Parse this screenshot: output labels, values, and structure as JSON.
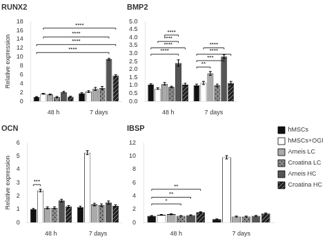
{
  "chart_data": [
    {
      "type": "bar",
      "title": "RUNX2",
      "ylabel": "Relative expression",
      "categories": [
        "48 h",
        "7 days"
      ],
      "series": [
        {
          "name": "hMSCs",
          "color": "#111111",
          "values": [
            1.0,
            1.8
          ],
          "errors": [
            0.08,
            0.15
          ]
        },
        {
          "name": "hMSCs+OGM",
          "color": "#ffffff",
          "values": [
            1.7,
            2.2
          ],
          "errors": [
            0.1,
            0.2
          ]
        },
        {
          "name": "Arneis LC",
          "color": "#aaaaaa",
          "values": [
            1.55,
            2.8
          ],
          "errors": [
            0.1,
            0.35
          ]
        },
        {
          "name": "Croatina LC",
          "color": "#888888",
          "values": [
            1.0,
            3.0
          ],
          "errors": [
            0.1,
            0.35
          ]
        },
        {
          "name": "Arneis HC",
          "color": "#555555",
          "values": [
            2.1,
            9.5
          ],
          "errors": [
            0.15,
            0.2
          ]
        },
        {
          "name": "Croatina HC",
          "color": "#222222",
          "values": [
            1.05,
            5.8
          ],
          "errors": [
            0.1,
            0.2
          ]
        }
      ],
      "ylim": [
        0,
        18
      ],
      "yticks": [
        0,
        2,
        4,
        6,
        8,
        10,
        12,
        14,
        16,
        18
      ],
      "grid": false,
      "annotations": [
        {
          "label": "****",
          "y": 11.0,
          "from": {
            "category": "48 h",
            "series": "hMSCs"
          },
          "to": {
            "category": "7 days",
            "series": "Arneis HC"
          }
        },
        {
          "label": "****",
          "y": 12.8,
          "from": {
            "category": "48 h",
            "series": "hMSCs"
          },
          "to": {
            "category": "7 days",
            "series": "Croatina HC"
          }
        },
        {
          "label": "****",
          "y": 14.5,
          "from": {
            "category": "48 h",
            "series": "hMSCs+OGM"
          },
          "to": {
            "category": "7 days",
            "series": "Arneis HC"
          }
        },
        {
          "label": "****",
          "y": 16.5,
          "from": {
            "category": "48 h",
            "series": "hMSCs+OGM"
          },
          "to": {
            "category": "7 days",
            "series": "Croatina HC"
          }
        }
      ]
    },
    {
      "type": "bar",
      "title": "BMP2",
      "categories": [
        "48 h",
        "7 days"
      ],
      "series": [
        {
          "name": "hMSCs",
          "color": "#111111",
          "values": [
            1.05,
            1.0
          ],
          "errors": [
            0.05,
            0.08
          ]
        },
        {
          "name": "hMSCs+OGM",
          "color": "#ffffff",
          "values": [
            0.8,
            1.15
          ],
          "errors": [
            0.05,
            0.1
          ]
        },
        {
          "name": "Arneis LC",
          "color": "#aaaaaa",
          "values": [
            1.1,
            1.75
          ],
          "errors": [
            0.08,
            0.12
          ]
        },
        {
          "name": "Croatina LC",
          "color": "#888888",
          "values": [
            0.9,
            1.0
          ],
          "errors": [
            0.05,
            0.08
          ]
        },
        {
          "name": "Arneis HC",
          "color": "#555555",
          "values": [
            2.4,
            2.8
          ],
          "errors": [
            0.2,
            0.12
          ]
        },
        {
          "name": "Croatina HC",
          "color": "#222222",
          "values": [
            1.05,
            1.15
          ],
          "errors": [
            0.08,
            0.1
          ]
        }
      ],
      "ylim": [
        0,
        5.0
      ],
      "yticks": [
        {
          "value": 0,
          "label": "0.0"
        },
        0.5,
        {
          "value": 1,
          "label": "1.0"
        },
        1.5,
        {
          "value": 2,
          "label": "2.0"
        },
        2.5,
        {
          "value": 3,
          "label": "3.0"
        },
        3.5,
        {
          "value": 4,
          "label": "4.0"
        },
        4.5,
        {
          "value": 5,
          "label": "5.0"
        }
      ],
      "grid": false,
      "annotations": [
        {
          "label": "****",
          "y": 2.95,
          "from": {
            "category": "48 h",
            "series": "hMSCs"
          },
          "to": {
            "category": "48 h",
            "series": "Arneis HC"
          }
        },
        {
          "label": "****",
          "y": 3.35,
          "from": {
            "category": "48 h",
            "series": "hMSCs"
          },
          "to": {
            "category": "48 h",
            "series": "Croatina HC"
          }
        },
        {
          "label": "****",
          "y": 3.75,
          "from": {
            "category": "48 h",
            "series": "hMSCs+OGM"
          },
          "to": {
            "category": "48 h",
            "series": "Arneis HC"
          }
        },
        {
          "label": "****",
          "y": 4.15,
          "from": {
            "category": "48 h",
            "series": "Arneis LC"
          },
          "to": {
            "category": "48 h",
            "series": "Arneis HC"
          }
        },
        {
          "label": "**",
          "y": 2.15,
          "from": {
            "category": "7 days",
            "series": "hMSCs"
          },
          "to": {
            "category": "7 days",
            "series": "Arneis LC"
          }
        },
        {
          "label": "***",
          "y": 2.55,
          "from": {
            "category": "7 days",
            "series": "hMSCs"
          },
          "to": {
            "category": "7 days",
            "series": "Arneis HC"
          }
        },
        {
          "label": "****",
          "y": 2.95,
          "from": {
            "category": "7 days",
            "series": "hMSCs"
          },
          "to": {
            "category": "7 days",
            "series": "Croatina HC"
          }
        },
        {
          "label": "****",
          "y": 3.35,
          "from": {
            "category": "7 days",
            "series": "hMSCs+OGM"
          },
          "to": {
            "category": "7 days",
            "series": "Arneis HC"
          }
        }
      ]
    },
    {
      "type": "bar",
      "title": "OCN",
      "ylabel": "Relative expression",
      "categories": [
        "48 h",
        "7 days"
      ],
      "series": [
        {
          "name": "hMSCs",
          "color": "#111111",
          "values": [
            1.0,
            1.15
          ],
          "errors": [
            0.06,
            0.08
          ]
        },
        {
          "name": "hMSCs+OGM",
          "color": "#ffffff",
          "values": [
            2.4,
            5.25
          ],
          "errors": [
            0.1,
            0.15
          ]
        },
        {
          "name": "Arneis LC",
          "color": "#aaaaaa",
          "values": [
            1.1,
            1.35
          ],
          "errors": [
            0.08,
            0.1
          ]
        },
        {
          "name": "Croatina LC",
          "color": "#888888",
          "values": [
            1.1,
            1.3
          ],
          "errors": [
            0.08,
            0.1
          ]
        },
        {
          "name": "Arneis HC",
          "color": "#555555",
          "values": [
            1.65,
            1.5
          ],
          "errors": [
            0.1,
            0.12
          ]
        },
        {
          "name": "Croatina HC",
          "color": "#222222",
          "values": [
            1.2,
            1.25
          ],
          "errors": [
            0.08,
            0.08
          ]
        }
      ],
      "ylim": [
        0,
        6
      ],
      "yticks": [
        0,
        1,
        2,
        3,
        4,
        5,
        6
      ],
      "grid": false,
      "annotations": [
        {
          "label": "***",
          "y": 2.85,
          "from": {
            "category": "48 h",
            "series": "hMSCs"
          },
          "to": {
            "category": "48 h",
            "series": "hMSCs+OGM"
          }
        }
      ]
    },
    {
      "type": "bar",
      "title": "IBSP",
      "categories": [
        "48 h",
        "7 days"
      ],
      "series": [
        {
          "name": "hMSCs",
          "color": "#111111",
          "values": [
            1.0,
            0.5
          ],
          "errors": [
            0.05,
            0.05
          ]
        },
        {
          "name": "hMSCs+OGM",
          "color": "#ffffff",
          "values": [
            1.15,
            9.8
          ],
          "errors": [
            0.06,
            0.25
          ]
        },
        {
          "name": "Arneis LC",
          "color": "#aaaaaa",
          "values": [
            1.25,
            0.9
          ],
          "errors": [
            0.07,
            0.07
          ]
        },
        {
          "name": "Croatina LC",
          "color": "#888888",
          "values": [
            1.0,
            0.9
          ],
          "errors": [
            0.05,
            0.07
          ]
        },
        {
          "name": "Arneis HC",
          "color": "#555555",
          "values": [
            1.1,
            1.0
          ],
          "errors": [
            0.06,
            0.07
          ]
        },
        {
          "name": "Croatina HC",
          "color": "#222222",
          "values": [
            1.55,
            1.35
          ],
          "errors": [
            0.08,
            0.1
          ]
        }
      ],
      "ylim": [
        0,
        12
      ],
      "yticks": [
        0,
        2,
        4,
        6,
        8,
        10,
        12
      ],
      "grid": false,
      "legend": "right",
      "annotations": [
        {
          "label": "*",
          "y": 2.8,
          "from": {
            "category": "48 h",
            "series": "hMSCs"
          },
          "to": {
            "category": "48 h",
            "series": "Croatina LC"
          }
        },
        {
          "label": "**",
          "y": 3.8,
          "from": {
            "category": "48 h",
            "series": "hMSCs"
          },
          "to": {
            "category": "48 h",
            "series": "Arneis HC"
          }
        },
        {
          "label": "**",
          "y": 5.0,
          "from": {
            "category": "48 h",
            "series": "hMSCs"
          },
          "to": {
            "category": "48 h",
            "series": "Croatina HC"
          }
        }
      ]
    }
  ]
}
